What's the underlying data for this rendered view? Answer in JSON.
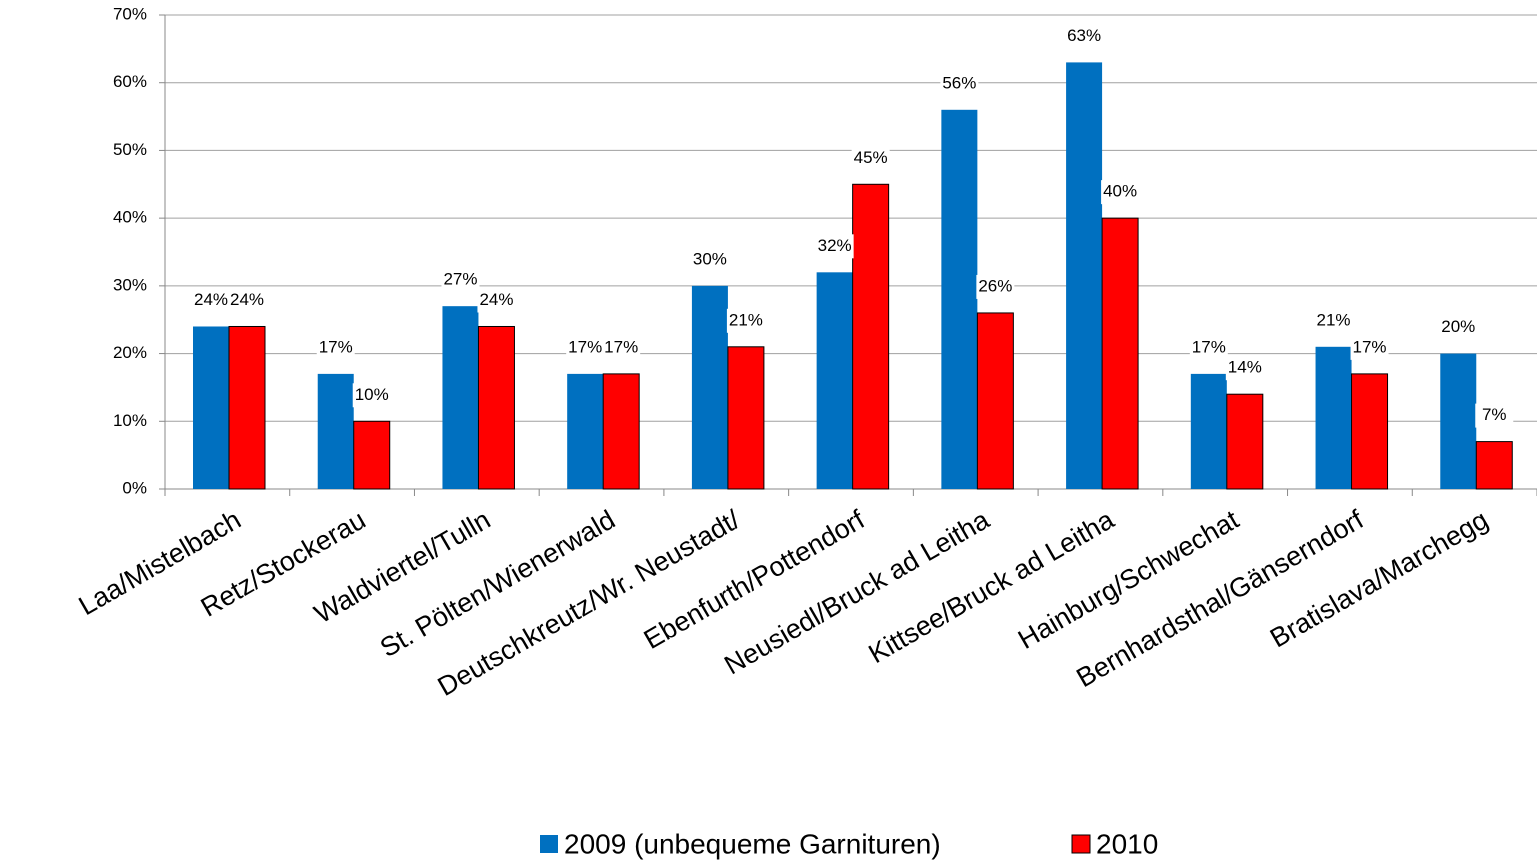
{
  "chart_data": {
    "type": "bar",
    "categories": [
      "Laa/Mistelbach",
      "Retz/Stockerau",
      "Waldviertel/Tulln",
      "St. Pölten/Wienerwald",
      "Deutschkreutz/Wr. Neustadt/",
      "Ebenfurth/Pottendorf",
      "Neusiedl/Bruck ad Leitha",
      "Kittsee/Bruck ad Leitha",
      "Hainburg/Schwechat",
      "Bernhardsthal/Gänserndorf",
      "Bratislava/Marchegg"
    ],
    "series": [
      {
        "name": "2009 (unbequeme Garnituren)",
        "color": "#0070c0",
        "values": [
          24,
          17,
          27,
          17,
          30,
          32,
          56,
          63,
          17,
          21,
          20
        ],
        "value_labels": [
          "24%",
          "17%",
          "27%",
          "17%",
          "30%",
          "32%",
          "56%",
          "63%",
          "17%",
          "21%",
          "20%"
        ]
      },
      {
        "name": "2010",
        "color": "#ff0000",
        "values": [
          24,
          10,
          24,
          17,
          21,
          45,
          26,
          40,
          14,
          17,
          7
        ],
        "value_labels": [
          "24%",
          "10%",
          "24%",
          "17%",
          "21%",
          "45%",
          "26%",
          "40%",
          "14%",
          "17%",
          "7%"
        ]
      }
    ],
    "ylim": [
      0,
      70
    ],
    "yticks": [
      {
        "value": 0,
        "label": "0%"
      },
      {
        "value": 10,
        "label": "10%"
      },
      {
        "value": 20,
        "label": "20%"
      },
      {
        "value": 30,
        "label": "30%"
      },
      {
        "value": 40,
        "label": "40%"
      },
      {
        "value": 50,
        "label": "50%"
      },
      {
        "value": 60,
        "label": "60%"
      },
      {
        "value": 70,
        "label": "70%"
      }
    ],
    "grid": true,
    "legend": "bottom"
  }
}
